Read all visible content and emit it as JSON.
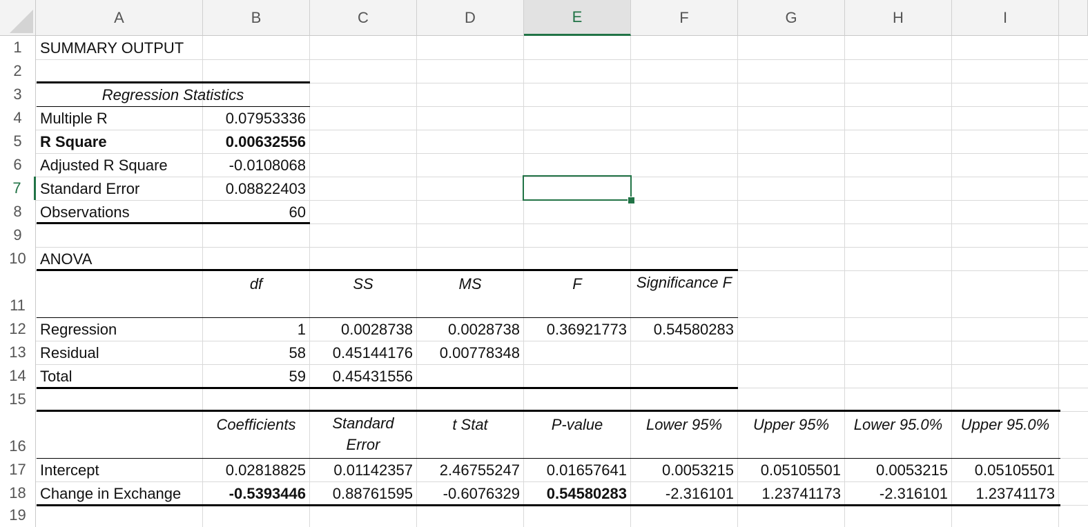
{
  "sheet": {
    "corner": "select-all",
    "columns": [
      "A",
      "B",
      "C",
      "D",
      "E",
      "F",
      "G",
      "H",
      "I"
    ],
    "rows": [
      "1",
      "2",
      "3",
      "4",
      "5",
      "6",
      "7",
      "8",
      "9",
      "10",
      "11",
      "12",
      "13",
      "14",
      "15",
      "16",
      "17",
      "18",
      "19"
    ],
    "active_column": "E",
    "active_row": "7"
  },
  "summary": {
    "title": "SUMMARY OUTPUT",
    "regression_header": "Regression Statistics",
    "stats": [
      {
        "label": "Multiple R",
        "value": "0.07953336"
      },
      {
        "label": "R Square",
        "value": "0.00632556"
      },
      {
        "label": "Adjusted R Square",
        "value": "-0.0108068"
      },
      {
        "label": "Standard Error",
        "value": "0.08822403"
      },
      {
        "label": "Observations",
        "value": "60"
      }
    ]
  },
  "anova": {
    "title": "ANOVA",
    "headers": [
      "df",
      "SS",
      "MS",
      "F",
      "Significance F"
    ],
    "rows": [
      {
        "label": "Regression",
        "df": "1",
        "ss": "0.0028738",
        "ms": "0.0028738",
        "f": "0.36921773",
        "sig_f": "0.54580283"
      },
      {
        "label": "Residual",
        "df": "58",
        "ss": "0.45144176",
        "ms": "0.00778348"
      },
      {
        "label": "Total",
        "df": "59",
        "ss": "0.45431556"
      }
    ]
  },
  "coefficients": {
    "headers": [
      "Coefficients",
      "Standard Error",
      "t Stat",
      "P-value",
      "Lower 95%",
      "Upper 95%",
      "Lower 95.0%",
      "Upper 95.0%"
    ],
    "rows": [
      {
        "label": "Intercept",
        "values": [
          "0.02818825",
          "0.01142357",
          "2.46755247",
          "0.01657641",
          "0.0053215",
          "0.05105501",
          "0.0053215",
          "0.05105501"
        ]
      },
      {
        "label": "Change in Exchange",
        "values": [
          "-0.5393446",
          "0.88761595",
          "-0.6076329",
          "0.54580283",
          "-2.316101",
          "1.23741173",
          "-2.316101",
          "1.23741173"
        ]
      }
    ]
  },
  "colors": {
    "accent": "#217346",
    "gridline": "#d9d9d9",
    "header_bg": "#f3f3f3"
  }
}
